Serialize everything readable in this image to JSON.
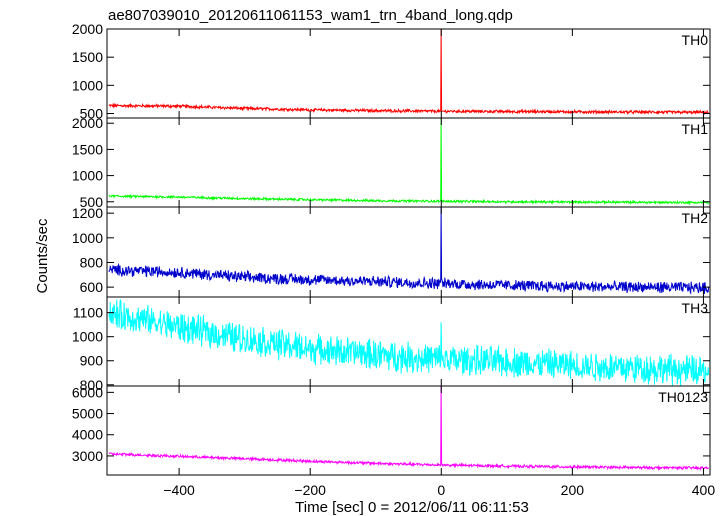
{
  "chart_data": {
    "type": "line",
    "title": "ae807039010_20120611061153_wam1_trn_4band_long.qdp",
    "xlabel": "Time [sec] 0 = 2012/06/11 06:11:53",
    "ylabel": "Counts/sec",
    "xlim": [
      -510,
      410
    ],
    "x_ticks": [
      -400,
      -200,
      0,
      200,
      400
    ],
    "x_tick_labels": [
      "−400",
      "−200",
      "0",
      "200",
      "400"
    ],
    "series": [
      {
        "name": "TH0",
        "color": "#ff0000",
        "ylim": [
          420,
          2000
        ],
        "y_ticks": [
          500,
          1000,
          1500,
          2000
        ],
        "baseline": [
          [
            -510,
            640
          ],
          [
            -400,
            630
          ],
          [
            -300,
            590
          ],
          [
            -200,
            565
          ],
          [
            -100,
            550
          ],
          [
            0,
            540
          ],
          [
            100,
            535
          ],
          [
            200,
            530
          ],
          [
            300,
            525
          ],
          [
            410,
            520
          ]
        ],
        "noise": 22,
        "spike": {
          "x": 0,
          "peak": 2000
        }
      },
      {
        "name": "TH1",
        "color": "#00ff00",
        "ylim": [
          400,
          2100
        ],
        "y_ticks": [
          500,
          1000,
          1500,
          2000
        ],
        "baseline": [
          [
            -510,
            610
          ],
          [
            -400,
            590
          ],
          [
            -300,
            560
          ],
          [
            -200,
            540
          ],
          [
            -100,
            520
          ],
          [
            0,
            510
          ],
          [
            100,
            500
          ],
          [
            200,
            495
          ],
          [
            300,
            490
          ],
          [
            410,
            485
          ]
        ],
        "noise": 18,
        "spike": {
          "x": 0,
          "peak": 2100
        }
      },
      {
        "name": "TH2",
        "color": "#0000cc",
        "ylim": [
          520,
          1250
        ],
        "y_ticks": [
          600,
          800,
          1000,
          1200
        ],
        "baseline": [
          [
            -510,
            740
          ],
          [
            -400,
            720
          ],
          [
            -300,
            680
          ],
          [
            -200,
            660
          ],
          [
            -100,
            645
          ],
          [
            0,
            630
          ],
          [
            100,
            615
          ],
          [
            200,
            605
          ],
          [
            300,
            600
          ],
          [
            410,
            595
          ]
        ],
        "noise": 40,
        "spike": {
          "x": 0,
          "peak": 1250
        }
      },
      {
        "name": "TH3",
        "color": "#00ffff",
        "ylim": [
          795,
          1165
        ],
        "y_ticks": [
          800,
          900,
          1000,
          1100
        ],
        "baseline": [
          [
            -510,
            1100
          ],
          [
            -400,
            1040
          ],
          [
            -300,
            990
          ],
          [
            -200,
            950
          ],
          [
            -100,
            925
          ],
          [
            0,
            905
          ],
          [
            100,
            895
          ],
          [
            200,
            880
          ],
          [
            300,
            870
          ],
          [
            410,
            855
          ]
        ],
        "noise": 55,
        "spike": {
          "x": 0,
          "peak": 1060
        }
      },
      {
        "name": "TH0123",
        "color": "#ff00ff",
        "ylim": [
          2100,
          6300
        ],
        "y_ticks": [
          3000,
          4000,
          5000,
          6000
        ],
        "baseline": [
          [
            -510,
            3100
          ],
          [
            -400,
            2980
          ],
          [
            -300,
            2870
          ],
          [
            -200,
            2750
          ],
          [
            -100,
            2650
          ],
          [
            0,
            2570
          ],
          [
            100,
            2520
          ],
          [
            200,
            2480
          ],
          [
            300,
            2450
          ],
          [
            410,
            2430
          ]
        ],
        "noise": 55,
        "spike": {
          "x": 0,
          "peak": 6300
        }
      }
    ]
  }
}
